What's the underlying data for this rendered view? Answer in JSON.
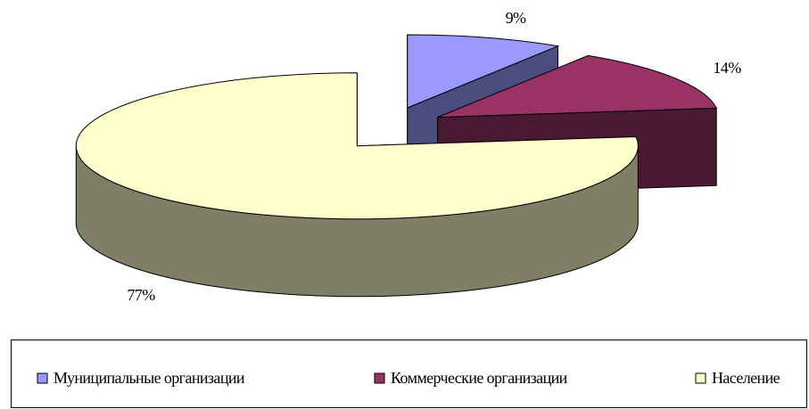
{
  "chart_data": {
    "type": "pie",
    "three_d": true,
    "exploded": true,
    "categories": [
      "Муниципальные организации",
      "Коммерческие организации",
      "Население"
    ],
    "values": [
      9,
      14,
      77
    ],
    "value_labels": [
      "9%",
      "14%",
      "77%"
    ],
    "colors": [
      "#9999ff",
      "#993366",
      "#ffffcc"
    ],
    "legend": "bottom"
  }
}
